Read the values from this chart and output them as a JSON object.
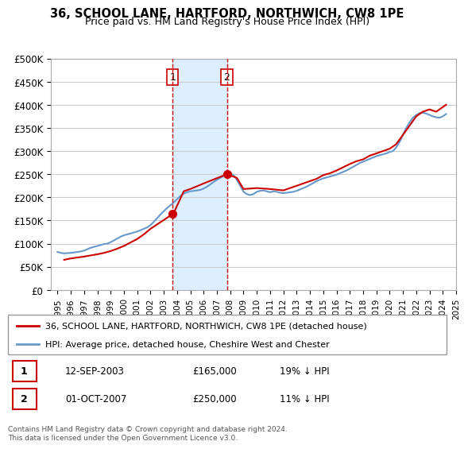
{
  "title": "36, SCHOOL LANE, HARTFORD, NORTHWICH, CW8 1PE",
  "subtitle": "Price paid vs. HM Land Registry's House Price Index (HPI)",
  "title_fontsize": 11,
  "subtitle_fontsize": 9.5,
  "ylabel_ticks": [
    "£0",
    "£50K",
    "£100K",
    "£150K",
    "£200K",
    "£250K",
    "£300K",
    "£350K",
    "£400K",
    "£450K",
    "£500K"
  ],
  "ytick_values": [
    0,
    50000,
    100000,
    150000,
    200000,
    250000,
    300000,
    350000,
    400000,
    450000,
    500000
  ],
  "ylim": [
    0,
    500000
  ],
  "background_color": "#ffffff",
  "grid_color": "#cccccc",
  "hpi_color": "#6699cc",
  "price_color": "#cc0000",
  "shade_color": "#ddeeff",
  "vline_color": "#cc0000",
  "transaction1": {
    "date": "2003-09-12",
    "price": 165000,
    "label": "1",
    "hpi_pct": "19% ↓ HPI"
  },
  "transaction2": {
    "date": "2007-10-01",
    "price": 250000,
    "label": "2",
    "hpi_pct": "11% ↓ HPI"
  },
  "legend_entry1": "36, SCHOOL LANE, HARTFORD, NORTHWICH, CW8 1PE (detached house)",
  "legend_entry2": "HPI: Average price, detached house, Cheshire West and Chester",
  "footer": "Contains HM Land Registry data © Crown copyright and database right 2024.\nThis data is licensed under the Open Government Licence v3.0.",
  "table_rows": [
    {
      "num": "1",
      "date": "12-SEP-2003",
      "price": "£165,000",
      "pct": "19% ↓ HPI"
    },
    {
      "num": "2",
      "date": "01-OCT-2007",
      "price": "£250,000",
      "pct": "11% ↓ HPI"
    }
  ],
  "hpi_data_years": [
    1995.0,
    1995.25,
    1995.5,
    1995.75,
    1996.0,
    1996.25,
    1996.5,
    1996.75,
    1997.0,
    1997.25,
    1997.5,
    1997.75,
    1998.0,
    1998.25,
    1998.5,
    1998.75,
    1999.0,
    1999.25,
    1999.5,
    1999.75,
    2000.0,
    2000.25,
    2000.5,
    2000.75,
    2001.0,
    2001.25,
    2001.5,
    2001.75,
    2002.0,
    2002.25,
    2002.5,
    2002.75,
    2003.0,
    2003.25,
    2003.5,
    2003.75,
    2004.0,
    2004.25,
    2004.5,
    2004.75,
    2005.0,
    2005.25,
    2005.5,
    2005.75,
    2006.0,
    2006.25,
    2006.5,
    2006.75,
    2007.0,
    2007.25,
    2007.5,
    2007.75,
    2008.0,
    2008.25,
    2008.5,
    2008.75,
    2009.0,
    2009.25,
    2009.5,
    2009.75,
    2010.0,
    2010.25,
    2010.5,
    2010.75,
    2011.0,
    2011.25,
    2011.5,
    2011.75,
    2012.0,
    2012.25,
    2012.5,
    2012.75,
    2013.0,
    2013.25,
    2013.5,
    2013.75,
    2014.0,
    2014.25,
    2014.5,
    2014.75,
    2015.0,
    2015.25,
    2015.5,
    2015.75,
    2016.0,
    2016.25,
    2016.5,
    2016.75,
    2017.0,
    2017.25,
    2017.5,
    2017.75,
    2018.0,
    2018.25,
    2018.5,
    2018.75,
    2019.0,
    2019.25,
    2019.5,
    2019.75,
    2020.0,
    2020.25,
    2020.5,
    2020.75,
    2021.0,
    2021.25,
    2021.5,
    2021.75,
    2022.0,
    2022.25,
    2022.5,
    2022.75,
    2023.0,
    2023.25,
    2023.5,
    2023.75,
    2024.0,
    2024.25
  ],
  "hpi_data_values": [
    82000,
    80000,
    79000,
    79500,
    80000,
    81000,
    82000,
    83000,
    85000,
    88000,
    91000,
    93000,
    95000,
    97000,
    99000,
    100000,
    103000,
    107000,
    111000,
    115000,
    118000,
    120000,
    122000,
    124000,
    126000,
    129000,
    132000,
    135000,
    140000,
    147000,
    155000,
    163000,
    170000,
    177000,
    183000,
    189000,
    196000,
    203000,
    208000,
    211000,
    213000,
    214000,
    215000,
    216000,
    219000,
    223000,
    228000,
    233000,
    238000,
    242000,
    246000,
    250000,
    252000,
    248000,
    238000,
    225000,
    212000,
    207000,
    205000,
    207000,
    212000,
    214000,
    215000,
    213000,
    211000,
    213000,
    212000,
    210000,
    209000,
    210000,
    211000,
    212000,
    214000,
    217000,
    220000,
    223000,
    227000,
    231000,
    235000,
    238000,
    241000,
    243000,
    245000,
    247000,
    249000,
    252000,
    255000,
    258000,
    262000,
    266000,
    270000,
    274000,
    277000,
    280000,
    283000,
    286000,
    289000,
    291000,
    293000,
    295000,
    298000,
    300000,
    308000,
    320000,
    335000,
    350000,
    362000,
    372000,
    378000,
    382000,
    383000,
    381000,
    378000,
    375000,
    373000,
    372000,
    375000,
    380000
  ],
  "price_data_years": [
    1995.5,
    1996.0,
    1997.0,
    1998.0,
    1998.5,
    1999.0,
    1999.5,
    2000.0,
    2001.0,
    2001.5,
    2002.0,
    2003.73,
    2004.5,
    2005.0,
    2006.0,
    2007.75,
    2008.5,
    2009.0,
    2010.0,
    2011.0,
    2012.0,
    2012.5,
    2013.0,
    2014.0,
    2014.5,
    2015.0,
    2015.5,
    2016.0,
    2016.5,
    2017.0,
    2017.5,
    2018.0,
    2018.5,
    2019.0,
    2019.5,
    2020.0,
    2020.5,
    2021.0,
    2021.5,
    2022.0,
    2022.5,
    2023.0,
    2023.5,
    2024.0,
    2024.25
  ],
  "price_data_values": [
    65000,
    68000,
    72000,
    77000,
    80000,
    84000,
    89000,
    95000,
    110000,
    120000,
    132000,
    165000,
    213000,
    218000,
    230000,
    250000,
    242000,
    218000,
    220000,
    218000,
    215000,
    220000,
    225000,
    235000,
    240000,
    248000,
    252000,
    258000,
    265000,
    272000,
    278000,
    282000,
    290000,
    295000,
    300000,
    305000,
    315000,
    335000,
    355000,
    375000,
    385000,
    390000,
    385000,
    395000,
    400000
  ]
}
